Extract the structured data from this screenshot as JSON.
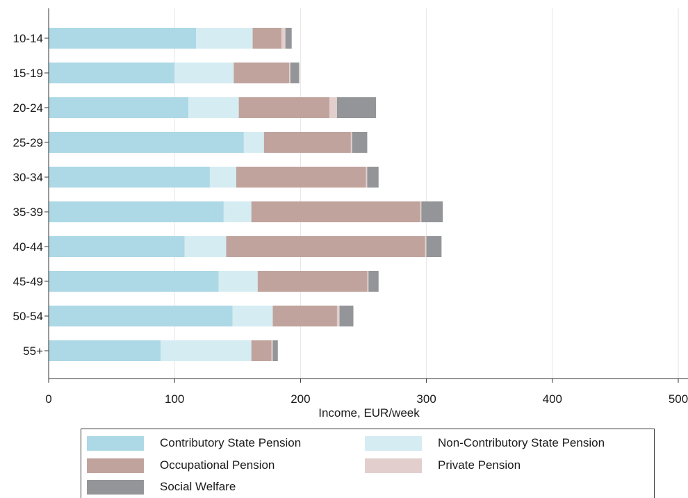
{
  "chart_data": {
    "type": "bar",
    "orientation": "horizontal",
    "stacked": true,
    "categories": [
      "10-14",
      "15-19",
      "20-24",
      "25-29",
      "30-34",
      "35-39",
      "40-44",
      "45-49",
      "50-54",
      "55+"
    ],
    "series": [
      {
        "name": "Contributory State Pension",
        "color": "#add8e6",
        "values": [
          117,
          100,
          111,
          155,
          128,
          139,
          108,
          135,
          146,
          89
        ]
      },
      {
        "name": "Non-Contributory State Pension",
        "color": "#d5ecf2",
        "values": [
          45,
          47,
          40,
          16,
          21,
          22,
          33,
          31,
          32,
          72
        ]
      },
      {
        "name": "Occupational Pension",
        "color": "#c0a39d",
        "values": [
          23,
          44,
          72,
          69,
          103,
          134,
          158,
          87,
          51,
          16
        ]
      },
      {
        "name": "Private Pension",
        "color": "#e2cfcd",
        "values": [
          3,
          1,
          6,
          1,
          1,
          1,
          1,
          1,
          2,
          1
        ]
      },
      {
        "name": "Social Welfare",
        "color": "#939598",
        "values": [
          5,
          7,
          31,
          12,
          9,
          17,
          12,
          8,
          11,
          4
        ]
      }
    ],
    "xlabel": "Income, EUR/week",
    "ylabel": "",
    "xlim": [
      0,
      500
    ],
    "xticks": [
      0,
      100,
      200,
      300,
      400,
      500
    ],
    "grid": true,
    "legend_position": "bottom"
  }
}
